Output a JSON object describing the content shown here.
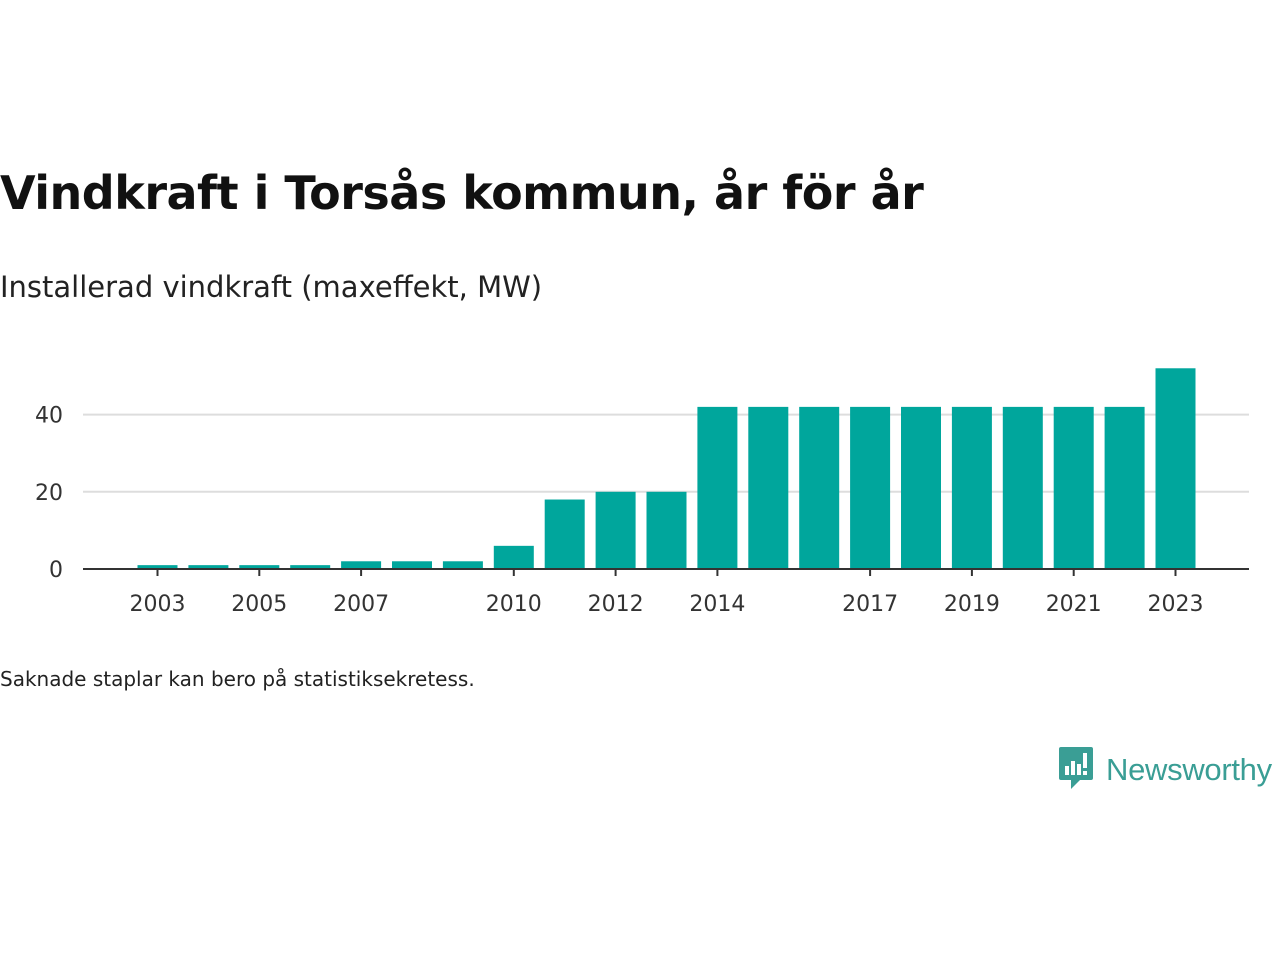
{
  "title": "Vindkraft i Torsås kommun, år för år",
  "subtitle": "Installerad vindkraft (maxeffekt, MW)",
  "footnote": "Saknade staplar kan bero på statistiksekretess.",
  "brand": {
    "name": "Newsworthy",
    "icon": "newsworthy-logo-icon",
    "color": "#3a9e95"
  },
  "colors": {
    "bar": "#00a69c",
    "grid": "#dddddd",
    "axis": "#333333"
  },
  "chart_data": {
    "type": "bar",
    "title": "Vindkraft i Torsås kommun, år för år",
    "subtitle": "Installerad vindkraft (maxeffekt, MW)",
    "xlabel": "",
    "ylabel": "",
    "categories": [
      "2003",
      "2004",
      "2005",
      "2006",
      "2007",
      "2008",
      "2009",
      "2010",
      "2011",
      "2012",
      "2013",
      "2014",
      "2015",
      "2016",
      "2017",
      "2018",
      "2019",
      "2020",
      "2021",
      "2022",
      "2023"
    ],
    "values": [
      1,
      1,
      1,
      1,
      2,
      2,
      2,
      6,
      18,
      20,
      20,
      42,
      42,
      42,
      42,
      42,
      42,
      42,
      42,
      42,
      52
    ],
    "x_tick_labels": [
      "2003",
      "2005",
      "2007",
      "2010",
      "2012",
      "2014",
      "2017",
      "2019",
      "2021",
      "2023"
    ],
    "y_ticks": [
      0,
      20,
      40
    ],
    "ylim": [
      0,
      55
    ],
    "grid": "horizontal",
    "legend": "none"
  }
}
